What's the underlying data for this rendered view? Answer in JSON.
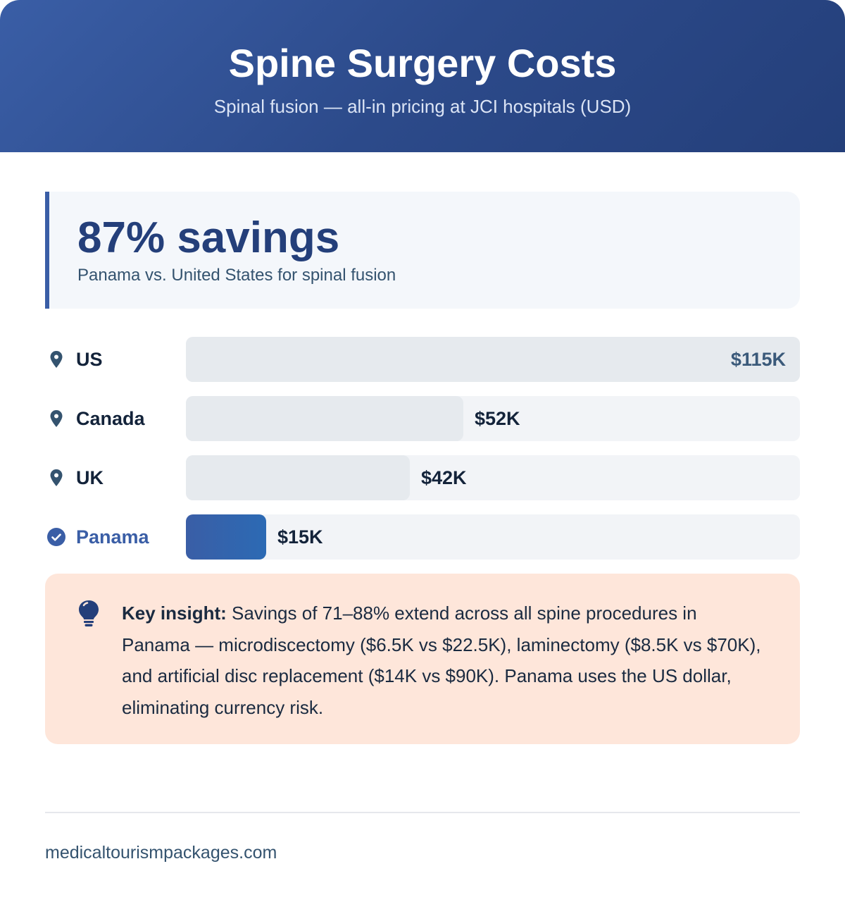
{
  "header": {
    "title": "Spine Surgery Costs",
    "subtitle": "Spinal fusion — all-in pricing at JCI hospitals (USD)"
  },
  "callout": {
    "headline": "87% savings",
    "subtext": "Panama vs. United States for spinal fusion"
  },
  "chart_data": {
    "type": "bar",
    "orientation": "horizontal",
    "categories": [
      "US",
      "Canada",
      "UK",
      "Panama"
    ],
    "values": [
      115,
      52,
      42,
      15
    ],
    "unit": "$K (USD)",
    "labels": [
      "$115K",
      "$52K",
      "$42K",
      "$15K"
    ],
    "highlight": "Panama",
    "icons": [
      "map-pin-icon",
      "map-pin-icon",
      "map-pin-icon",
      "check-circle-icon"
    ],
    "colors": {
      "default": "#e6eaee",
      "highlight": "#3a5ea6",
      "track": "#f2f4f7"
    },
    "xlim": [
      0,
      115
    ]
  },
  "insight": {
    "icon": "lightbulb-icon",
    "label": "Key insight:",
    "text": " Savings of 71–88% extend across all spine procedures in Panama — microdiscectomy ($6.5K vs $22.5K), laminectomy ($8.5K vs $70K), and artificial disc replacement ($14K vs $90K). Panama uses the US dollar, eliminating currency risk."
  },
  "footer": {
    "site": "medicaltourismpackages.com"
  }
}
